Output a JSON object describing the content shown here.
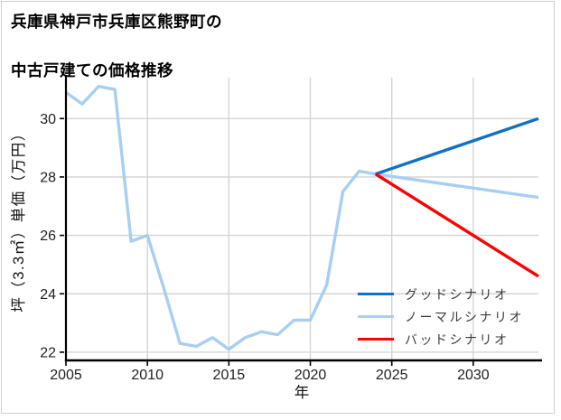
{
  "header": {
    "title_lines": [
      "兵庫県神戸市兵庫区熊野町の",
      "中古戸建ての価格推移"
    ]
  },
  "colors": {
    "good": "#1170c4",
    "normal": "#a8cef2",
    "bad": "#fe0000",
    "grid": "#d4d4d4",
    "axis": "#000000",
    "tick_text": "#222222",
    "frame_border": "#cfcfcf"
  },
  "legend": {
    "position": "lower right",
    "items": [
      {
        "label": "グッドシナリオ",
        "color": "#1170c4"
      },
      {
        "label": "ノーマルシナリオ",
        "color": "#a8cef2"
      },
      {
        "label": "バッドシナリオ",
        "color": "#fe0000"
      }
    ]
  },
  "chart_data": {
    "type": "line",
    "title": "兵庫県神戸市兵庫区熊野町の中古戸建ての価格推移",
    "xlabel": "年",
    "ylabel": "坪（3.3㎡）単価（万円）",
    "xlim": [
      2005,
      2034
    ],
    "ylim": [
      21.75,
      31.4
    ],
    "xticks": [
      2005,
      2010,
      2015,
      2020,
      2025,
      2030
    ],
    "yticks": [
      22,
      24,
      26,
      28,
      30
    ],
    "grid": true,
    "legend_position": "lower right",
    "series": [
      {
        "name": "ノーマルシナリオ",
        "color": "#a8cef2",
        "x": [
          2005,
          2006,
          2007,
          2008,
          2009,
          2010,
          2011,
          2012,
          2013,
          2014,
          2015,
          2016,
          2017,
          2018,
          2019,
          2020,
          2021,
          2022,
          2023,
          2024,
          2034
        ],
        "values": [
          30.9,
          30.5,
          31.1,
          31.0,
          25.8,
          26.0,
          24.2,
          22.3,
          22.2,
          22.5,
          22.1,
          22.5,
          22.7,
          22.6,
          23.1,
          23.1,
          24.3,
          27.5,
          28.2,
          28.1,
          27.3
        ]
      },
      {
        "name": "グッドシナリオ",
        "color": "#1170c4",
        "x": [
          2024,
          2034
        ],
        "values": [
          28.1,
          30.0
        ]
      },
      {
        "name": "バッドシナリオ",
        "color": "#fe0000",
        "x": [
          2024,
          2034
        ],
        "values": [
          28.1,
          24.6
        ]
      }
    ]
  }
}
